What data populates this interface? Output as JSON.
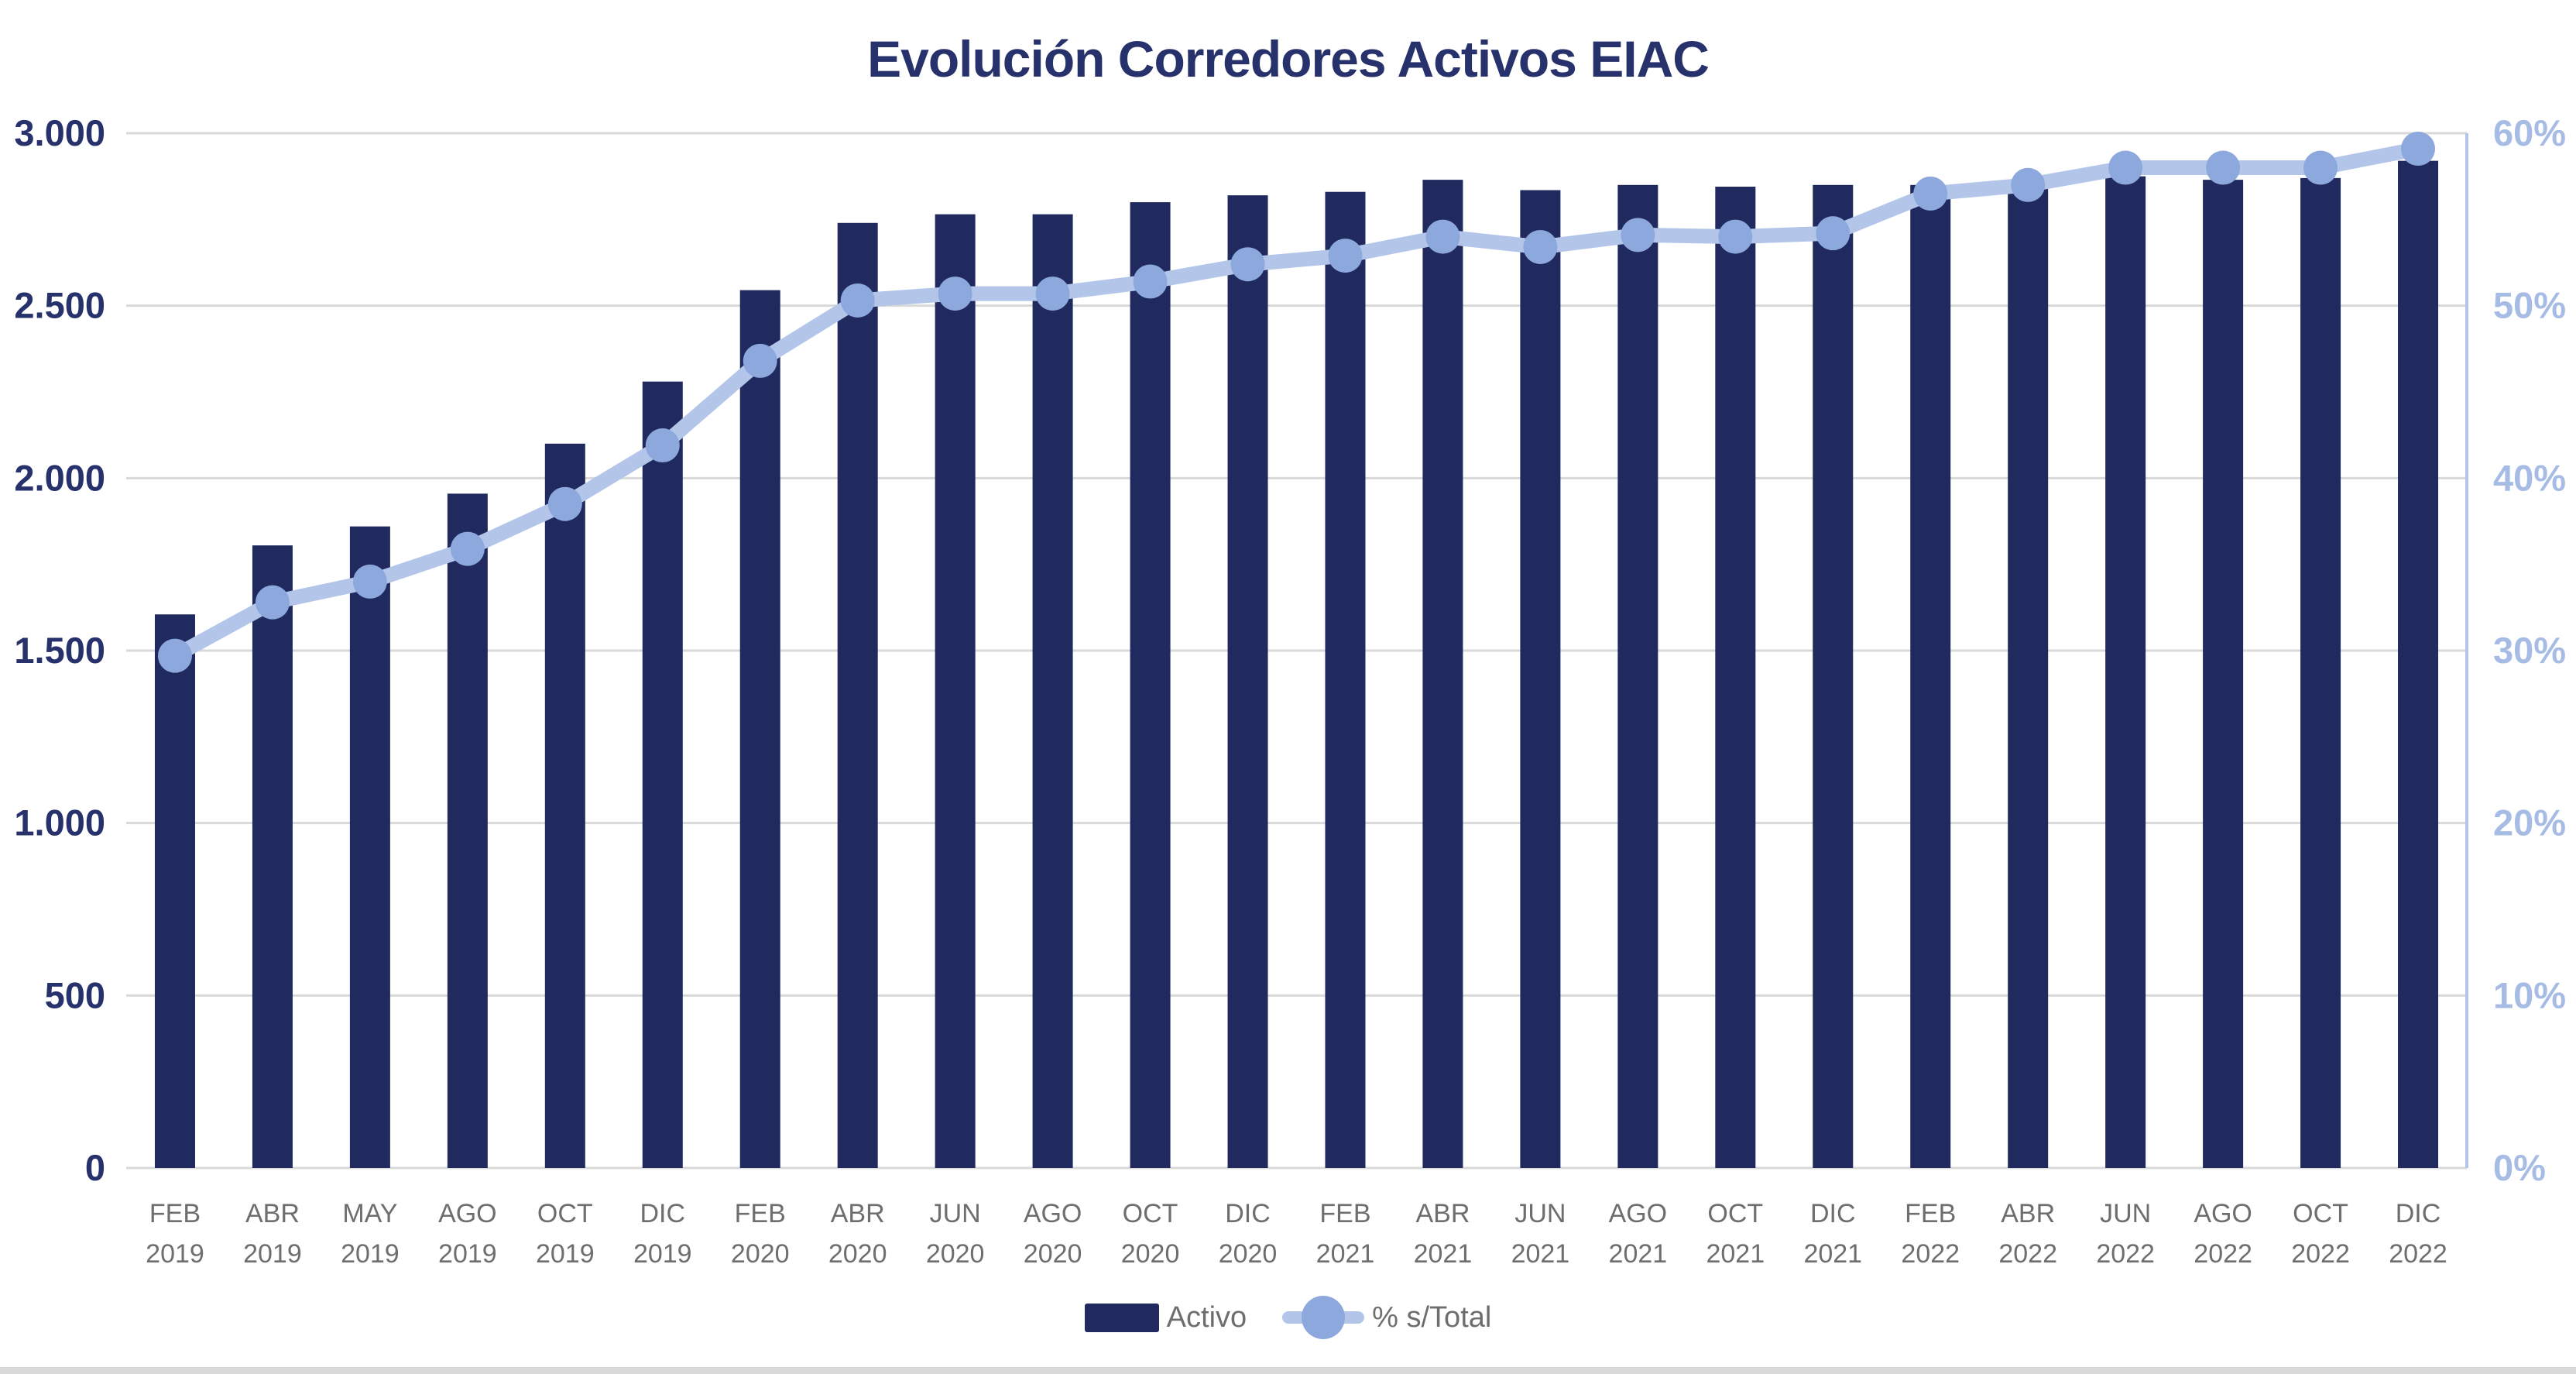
{
  "window": {
    "background": "#FFFFFF",
    "bottom_edge_color": "#D9D9D9"
  },
  "chart_data": {
    "type": "combo-bar-line",
    "title": "Evolución Corredores Activos EIAC",
    "title_color": "#27316B",
    "grid": "horizontal-on",
    "legend_position": "bottom-center",
    "categories": [
      "FEB 2019",
      "ABR 2019",
      "MAY 2019",
      "AGO 2019",
      "OCT 2019",
      "DIC 2019",
      "FEB 2020",
      "ABR 2020",
      "JUN 2020",
      "AGO 2020",
      "OCT 2020",
      "DIC 2020",
      "FEB 2021",
      "ABR 2021",
      "JUN 2021",
      "AGO 2021",
      "OCT 2021",
      "DIC 2021",
      "FEB 2022",
      "ABR 2022",
      "JUN 2022",
      "AGO 2022",
      "OCT 2022",
      "DIC 2022"
    ],
    "series": [
      {
        "name": "Activo",
        "type": "bar",
        "axis": "left",
        "color": "#202A5E",
        "values": [
          1605,
          1805,
          1860,
          1955,
          2100,
          2280,
          2545,
          2740,
          2765,
          2765,
          2800,
          2820,
          2830,
          2865,
          2835,
          2850,
          2845,
          2850,
          2850,
          2860,
          2875,
          2865,
          2870,
          2920
        ]
      },
      {
        "name": "% s/Total",
        "type": "line",
        "axis": "right",
        "line_color": "#B3C6E9",
        "marker_color": "#8CA8DC",
        "values": [
          29.7,
          32.8,
          34.0,
          35.9,
          38.5,
          41.9,
          46.8,
          50.3,
          50.7,
          50.7,
          51.4,
          52.4,
          52.9,
          54.0,
          53.4,
          54.1,
          54.0,
          54.2,
          56.5,
          57.0,
          58.0,
          58.0,
          58.0,
          59.1
        ]
      }
    ],
    "left_axis": {
      "min": 0,
      "max": 3000,
      "step": 500,
      "labels": [
        "0",
        "500",
        "1.000",
        "1.500",
        "2.000",
        "2.500",
        "3.000"
      ],
      "color": "#27316B"
    },
    "right_axis": {
      "min": 0,
      "max": 60,
      "step": 10,
      "labels": [
        "0%",
        "10%",
        "20%",
        "30%",
        "40%",
        "50%",
        "60%"
      ],
      "color": "#A7BCE5",
      "axis_line_color": "#B3C6E9"
    },
    "x_axis": {
      "label_color": "#6E6E6E"
    },
    "gridline_color": "#D9D9D9",
    "legend_text_color": "#6E6E6E"
  }
}
